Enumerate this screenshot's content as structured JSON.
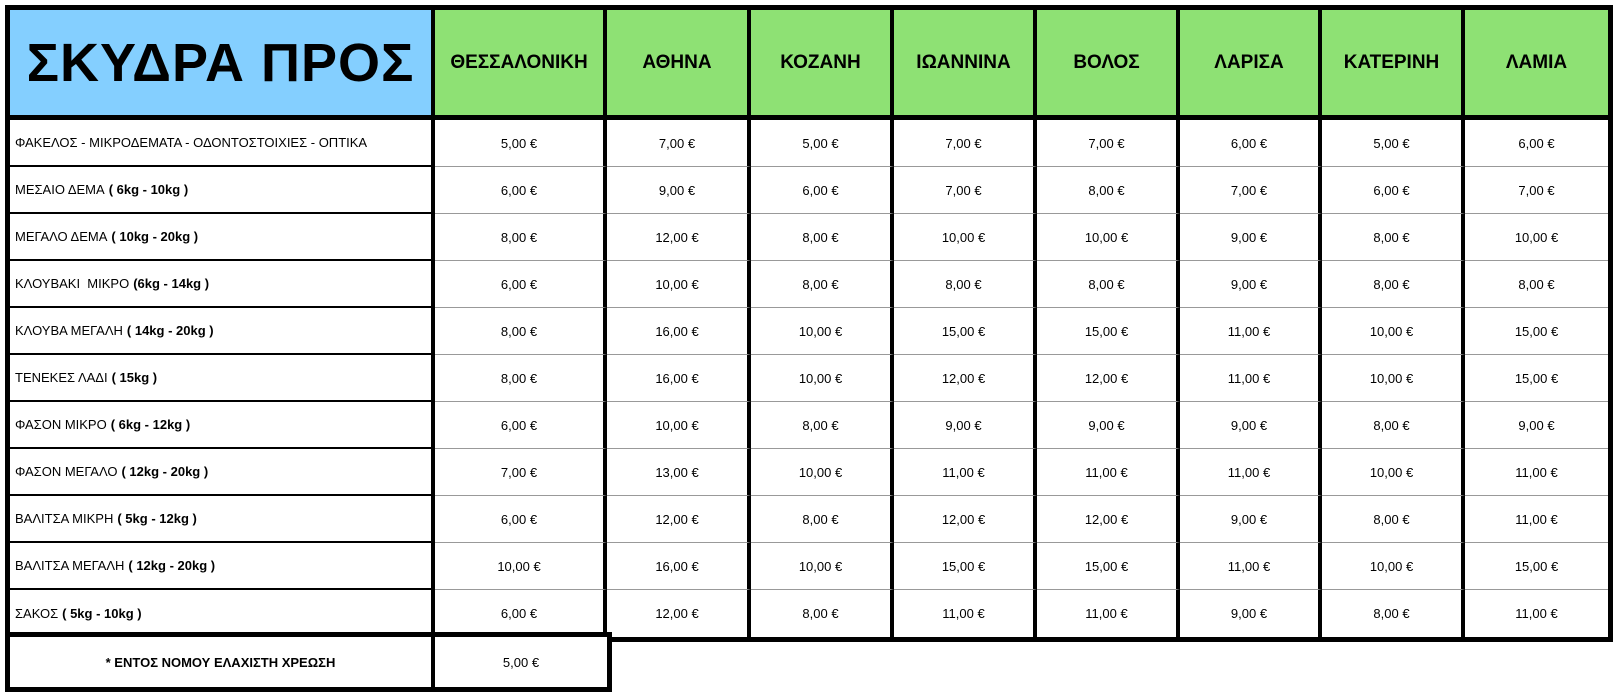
{
  "title": "ΣΚΥΔΡΑ ΠΡΟΣ",
  "destinations": [
    "ΘΕΣΣΑΛΟΝΙΚΗ",
    "ΑΘΗΝΑ",
    "ΚΟΖΑΝΗ",
    "ΙΩΑΝΝΙΝΑ",
    "ΒΟΛΟΣ",
    "ΛΑΡΙΣΑ",
    "ΚΑΤΕΡΙΝΗ",
    "ΛΑΜΙΑ"
  ],
  "rows": [
    {
      "name": "ΦΑΚΕΛΟΣ - ΜΙΚΡΟΔΕΜΑΤΑ - ΟΔΟΝΤΟΣΤΟΙΧΙΕΣ - ΟΠΤΙΚΑ",
      "weight": "",
      "prices": [
        "5,00 €",
        "7,00 €",
        "5,00 €",
        "7,00 €",
        "7,00 €",
        "6,00 €",
        "5,00 €",
        "6,00 €"
      ]
    },
    {
      "name": "ΜΕΣΑΙΟ ΔΕΜΑ",
      "weight": "( 6kg - 10kg )",
      "prices": [
        "6,00 €",
        "9,00 €",
        "6,00 €",
        "7,00 €",
        "8,00 €",
        "7,00 €",
        "6,00 €",
        "7,00 €"
      ]
    },
    {
      "name": "ΜΕΓΑΛΟ ΔΕΜΑ",
      "weight": "( 10kg - 20kg )",
      "prices": [
        "8,00 €",
        "12,00 €",
        "8,00 €",
        "10,00 €",
        "10,00 €",
        "9,00 €",
        "8,00 €",
        "10,00 €"
      ]
    },
    {
      "name": "ΚΛΟΥΒΑΚΙ  ΜΙΚΡΟ",
      "weight": "(6kg - 14kg )",
      "prices": [
        "6,00 €",
        "10,00 €",
        "8,00 €",
        "8,00 €",
        "8,00 €",
        "9,00 €",
        "8,00 €",
        "8,00 €"
      ]
    },
    {
      "name": "ΚΛΟΥΒΑ ΜΕΓΑΛΗ",
      "weight": "( 14kg - 20kg )",
      "prices": [
        "8,00 €",
        "16,00 €",
        "10,00 €",
        "15,00 €",
        "15,00 €",
        "11,00 €",
        "10,00 €",
        "15,00 €"
      ]
    },
    {
      "name": "ΤΕΝΕΚΕΣ ΛΑΔΙ",
      "weight": "( 15kg )",
      "prices": [
        "8,00 €",
        "16,00 €",
        "10,00 €",
        "12,00 €",
        "12,00 €",
        "11,00 €",
        "10,00 €",
        "15,00 €"
      ]
    },
    {
      "name": "ΦΑΣΟΝ ΜΙΚΡΟ",
      "weight": "( 6kg - 12kg )",
      "prices": [
        "6,00 €",
        "10,00 €",
        "8,00 €",
        "9,00 €",
        "9,00 €",
        "9,00 €",
        "8,00 €",
        "9,00 €"
      ]
    },
    {
      "name": "ΦΑΣΟΝ ΜΕΓΑΛΟ",
      "weight": "( 12kg - 20kg )",
      "prices": [
        "7,00 €",
        "13,00 €",
        "10,00 €",
        "11,00 €",
        "11,00 €",
        "11,00 €",
        "10,00 €",
        "11,00 €"
      ]
    },
    {
      "name": "ΒΑΛΙΤΣΑ ΜΙΚΡΗ",
      "weight": "( 5kg - 12kg )",
      "prices": [
        "6,00 €",
        "12,00 €",
        "8,00 €",
        "12,00 €",
        "12,00 €",
        "9,00 €",
        "8,00 €",
        "11,00 €"
      ]
    },
    {
      "name": "ΒΑΛΙΤΣΑ ΜΕΓΑΛΗ",
      "weight": "( 12kg - 20kg )",
      "prices": [
        "10,00 €",
        "16,00 €",
        "10,00 €",
        "15,00 €",
        "15,00 €",
        "11,00 €",
        "10,00 €",
        "15,00 €"
      ]
    },
    {
      "name": "ΣΑΚΟΣ",
      "weight": "( 5kg - 10kg )",
      "prices": [
        "6,00 €",
        "12,00 €",
        "8,00 €",
        "11,00 €",
        "11,00 €",
        "9,00 €",
        "8,00 €",
        "11,00 €"
      ]
    }
  ],
  "footer": {
    "label": "* ΕΝΤΟΣ ΝΟΜΟΥ ΕΛΑΧΙΣΤΗ ΧΡΕΩΣΗ",
    "price": "5,00 €"
  },
  "colors": {
    "title_bg": "#84cfff",
    "header_bg": "#8ee174",
    "border": "#000000"
  }
}
